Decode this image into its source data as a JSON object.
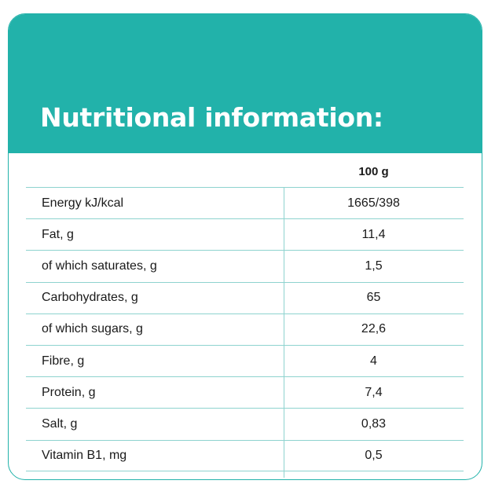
{
  "title": "Nutritional information:",
  "table": {
    "column_header": "100 g",
    "rows": [
      {
        "label": "Energy kJ/kcal",
        "value": "1665/398"
      },
      {
        "label": "Fat, g",
        "value": "11,4"
      },
      {
        "label": "of which saturates, g",
        "value": "1,5"
      },
      {
        "label": "Carbohydrates, g",
        "value": "65"
      },
      {
        "label": "of which sugars, g",
        "value": "22,6"
      },
      {
        "label": "Fibre, g",
        "value": "4"
      },
      {
        "label": "Protein, g",
        "value": "7,4"
      },
      {
        "label": "Salt, g",
        "value": "0,83"
      },
      {
        "label": "Vitamin B1, mg",
        "value": "0,5"
      }
    ]
  },
  "colors": {
    "header_bg": "#22b2aa",
    "rule": "#8ed3cf",
    "text": "#1a1a1a"
  }
}
